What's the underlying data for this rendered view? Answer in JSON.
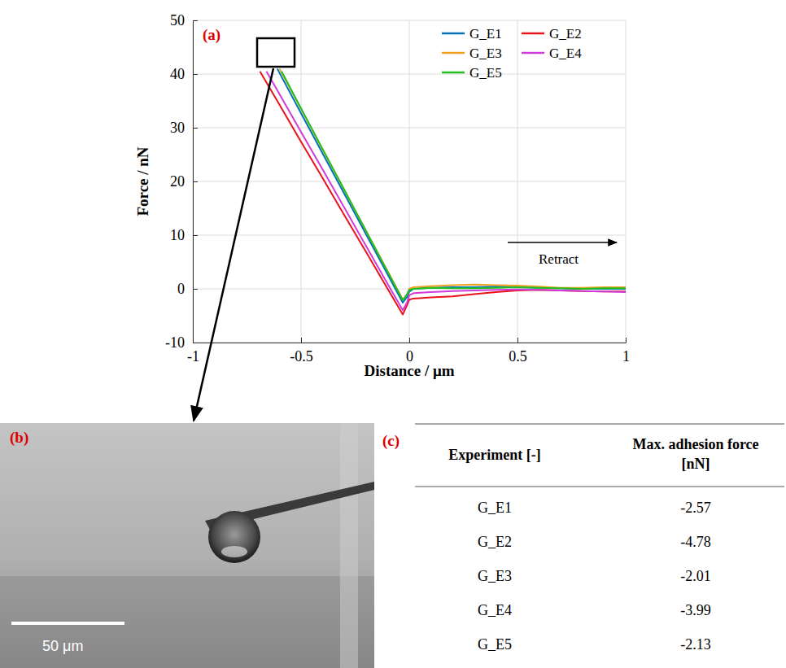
{
  "chart_data": {
    "type": "line",
    "panel_label": "(a)",
    "x_label": "Distance / μm",
    "y_label": "Force / nN",
    "xlim": [
      -1,
      1
    ],
    "xticks": [
      -1,
      -0.5,
      0,
      0.5,
      1
    ],
    "ylim": [
      -10,
      50
    ],
    "yticks": [
      -10,
      0,
      10,
      20,
      30,
      40,
      50
    ],
    "grid": true,
    "legend": "top-right",
    "annotations": [
      {
        "text": "Retract"
      }
    ],
    "series": [
      {
        "name": "G_E1",
        "color": "#0072bd",
        "x": [
          -0.61,
          -0.5,
          -0.4,
          -0.3,
          -0.2,
          -0.1,
          -0.03,
          -0.01,
          0,
          0.02,
          0.1,
          0.2,
          0.3,
          0.4,
          0.5,
          0.6,
          0.7,
          0.8,
          0.9,
          1
        ],
        "values": [
          41,
          32.7,
          25.2,
          17.7,
          10.2,
          2.7,
          -2.57,
          -1.5,
          -0.5,
          0,
          0.2,
          0.3,
          0.3,
          0.4,
          0.3,
          0.2,
          0.1,
          0,
          0,
          0
        ]
      },
      {
        "name": "G_E2",
        "color": "#e8141a",
        "x": [
          -0.69,
          -0.6,
          -0.5,
          -0.4,
          -0.3,
          -0.2,
          -0.1,
          -0.03,
          -0.01,
          0,
          0.02,
          0.1,
          0.2,
          0.3,
          0.4,
          0.5,
          0.6,
          0.7,
          0.8,
          0.9,
          1
        ],
        "values": [
          40.5,
          34.3,
          27.4,
          20.6,
          13.7,
          6.9,
          0,
          -4.78,
          -3,
          -2,
          -1.8,
          -1.6,
          -1.4,
          -1,
          -0.6,
          -0.3,
          -0.2,
          -0.3,
          -0.4,
          -0.5,
          -0.5
        ]
      },
      {
        "name": "G_E3",
        "color": "#f0a020",
        "x": [
          -0.6,
          -0.5,
          -0.4,
          -0.3,
          -0.2,
          -0.1,
          -0.03,
          -0.01,
          0,
          0.02,
          0.1,
          0.2,
          0.3,
          0.4,
          0.5,
          0.6,
          0.7,
          0.8,
          0.9,
          1
        ],
        "values": [
          41,
          33.5,
          25.9,
          18.4,
          10.8,
          3.3,
          -2.01,
          -1,
          0,
          0.3,
          0.5,
          0.7,
          0.8,
          0.7,
          0.6,
          0.4,
          0.2,
          0.2,
          0.3,
          0.3
        ]
      },
      {
        "name": "G_E4",
        "color": "#d03cdc",
        "x": [
          -0.66,
          -0.6,
          -0.5,
          -0.4,
          -0.3,
          -0.2,
          -0.1,
          -0.03,
          -0.01,
          0,
          0.02,
          0.1,
          0.2,
          0.3,
          0.4,
          0.5,
          0.6,
          0.7,
          0.8,
          0.9,
          1
        ],
        "values": [
          40.5,
          36.3,
          29.2,
          22.2,
          15.1,
          8,
          0.9,
          -3.99,
          -2.5,
          -1.2,
          -0.8,
          -0.6,
          -0.4,
          -0.3,
          -0.2,
          -0.1,
          -0.2,
          -0.3,
          -0.4,
          -0.5,
          -0.6
        ]
      },
      {
        "name": "G_E5",
        "color": "#20c020",
        "x": [
          -0.59,
          -0.5,
          -0.4,
          -0.3,
          -0.2,
          -0.1,
          -0.03,
          -0.01,
          0,
          0.02,
          0.1,
          0.2,
          0.3,
          0.4,
          0.5,
          0.6,
          0.7,
          0.8,
          0.9,
          1
        ],
        "values": [
          40.5,
          33.6,
          26,
          18.4,
          10.8,
          3.2,
          -2.13,
          -1,
          -0.2,
          0,
          0.2,
          0.1,
          0.1,
          0.2,
          0.3,
          0.2,
          0.1,
          0,
          0.1,
          0.1
        ]
      }
    ]
  },
  "image": {
    "panel_label": "(b)",
    "scale_bar": "50 μm"
  },
  "table": {
    "panel_label": "(c)",
    "columns": [
      "Experiment [-]",
      "Max. adhesion force [nN]"
    ],
    "rows": [
      [
        "G_E1",
        -2.57
      ],
      [
        "G_E2",
        -4.78
      ],
      [
        "G_E3",
        -2.01
      ],
      [
        "G_E4",
        -3.99
      ],
      [
        "G_E5",
        -2.13
      ]
    ]
  }
}
